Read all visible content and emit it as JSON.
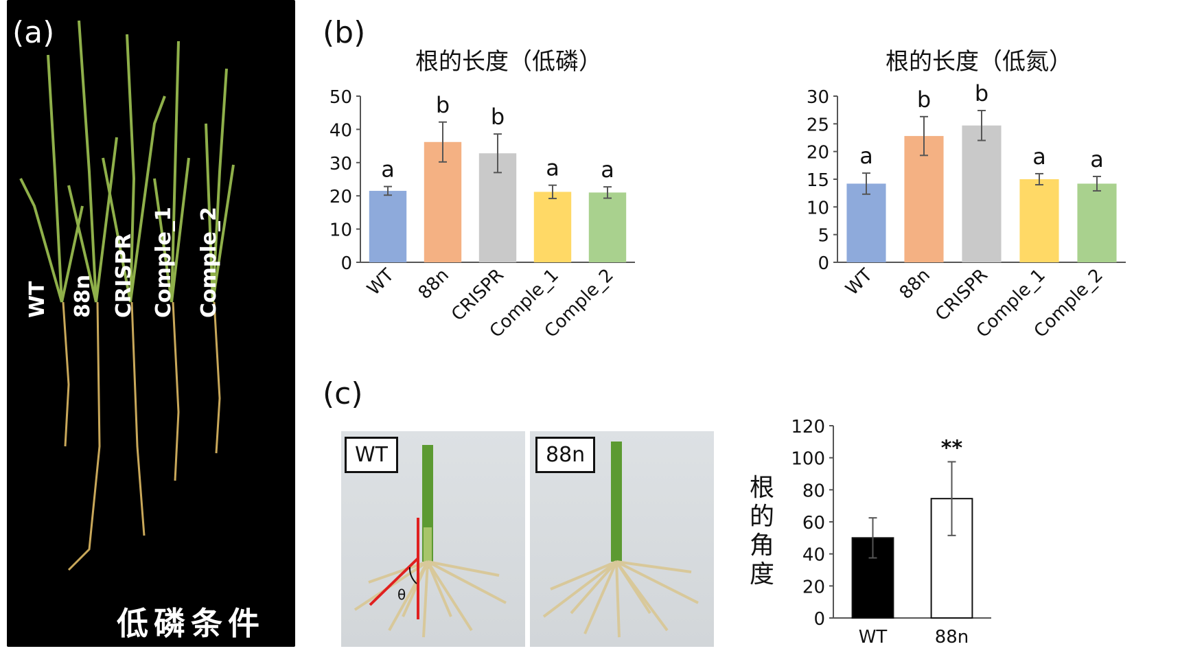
{
  "panels": {
    "a": {
      "label": "(a)",
      "lines": [
        "WT",
        "88n",
        "CRISPR",
        "Comple_1",
        "Comple_2"
      ],
      "condition": "低磷条件"
    },
    "b": {
      "label": "(b)"
    },
    "c": {
      "label": "(c)",
      "photo_tags": [
        "WT",
        "88n"
      ],
      "theta_symbol": "θ",
      "ylabel": "根的角度"
    }
  },
  "colors": {
    "WT": "#8eaadb",
    "88n": "#f4b183",
    "CRISPR": "#c9c9c9",
    "Comple_1": "#ffd966",
    "Comple_2": "#a9d18e"
  },
  "chart_data": [
    {
      "type": "bar",
      "title": "根的长度（低磷）",
      "categories": [
        "WT",
        "88n",
        "CRISPR",
        "Comple_1",
        "Comple_2"
      ],
      "values": [
        21.5,
        36.2,
        32.8,
        21.2,
        21.0
      ],
      "errors": [
        1.3,
        6.0,
        5.8,
        2.0,
        1.7
      ],
      "significance": [
        "a",
        "b",
        "b",
        "a",
        "a"
      ],
      "ylim": [
        0,
        50
      ],
      "yticks": [
        0,
        10,
        20,
        30,
        40,
        50
      ],
      "grid": false
    },
    {
      "type": "bar",
      "title": "根的长度（低氮）",
      "categories": [
        "WT",
        "88n",
        "CRISPR",
        "Comple_1",
        "Comple_2"
      ],
      "values": [
        14.2,
        22.8,
        24.7,
        15.0,
        14.2
      ],
      "errors": [
        1.9,
        3.5,
        2.7,
        1.0,
        1.3
      ],
      "significance": [
        "a",
        "b",
        "b",
        "a",
        "a"
      ],
      "ylim": [
        0,
        30
      ],
      "yticks": [
        0,
        5,
        10,
        15,
        20,
        25,
        30
      ],
      "grid": false
    },
    {
      "type": "bar",
      "categories": [
        "WT",
        "88n"
      ],
      "values": [
        50,
        74.5
      ],
      "errors": [
        12.5,
        23
      ],
      "fills": [
        "#000000",
        "#ffffff"
      ],
      "annotation": "**",
      "ylim": [
        0,
        120
      ],
      "yticks": [
        0,
        20,
        40,
        60,
        80,
        100,
        120
      ],
      "grid": false
    }
  ]
}
